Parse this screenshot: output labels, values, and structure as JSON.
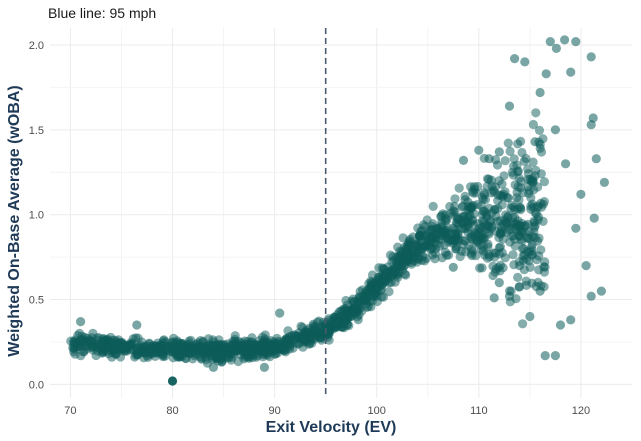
{
  "chart_data": {
    "type": "scatter",
    "subtitle": "Blue line: 95 mph",
    "xlabel": "Exit Velocity (EV)",
    "ylabel": "Weighted On-Base Average (wOBA)",
    "xlim": [
      68,
      125
    ],
    "ylim": [
      -0.08,
      2.1
    ],
    "x_ticks": [
      70,
      80,
      90,
      100,
      110,
      120
    ],
    "y_ticks": [
      0.0,
      0.5,
      1.0,
      1.5,
      2.0
    ],
    "y_tick_labels": [
      "0.0",
      "0.5",
      "1.0",
      "1.5",
      "2.0"
    ],
    "vline": {
      "x": 95,
      "label": "95 mph"
    },
    "point_color": "#0b5c5a",
    "vline_color": "#4a5a70",
    "trend": [
      [
        70,
        0.24
      ],
      [
        75,
        0.22
      ],
      [
        80,
        0.2
      ],
      [
        85,
        0.2
      ],
      [
        90,
        0.22
      ],
      [
        95,
        0.32
      ],
      [
        98,
        0.45
      ],
      [
        100,
        0.58
      ],
      [
        103,
        0.76
      ],
      [
        106,
        0.9
      ],
      [
        110,
        0.98
      ],
      [
        113,
        1.0
      ],
      [
        116,
        0.97
      ]
    ],
    "outliers": [
      [
        80.0,
        0.02
      ],
      [
        71.0,
        0.37
      ],
      [
        76.5,
        0.35
      ],
      [
        90.5,
        0.42
      ],
      [
        89.0,
        0.1
      ],
      [
        84.0,
        0.1
      ],
      [
        117.0,
        2.02
      ],
      [
        118.4,
        2.03
      ],
      [
        119.5,
        2.02
      ],
      [
        117.6,
        1.98
      ],
      [
        113.5,
        1.92
      ],
      [
        114.5,
        1.9
      ],
      [
        121.0,
        1.93
      ],
      [
        116.6,
        1.83
      ],
      [
        119.0,
        1.84
      ],
      [
        116.0,
        1.72
      ],
      [
        113.0,
        1.64
      ],
      [
        117.5,
        1.5
      ],
      [
        115.5,
        1.43
      ],
      [
        121.2,
        1.57
      ],
      [
        121.0,
        1.53
      ],
      [
        112.0,
        1.37
      ],
      [
        111.0,
        1.33
      ],
      [
        118.5,
        1.3
      ],
      [
        121.5,
        1.33
      ],
      [
        122.3,
        1.19
      ],
      [
        120.0,
        1.12
      ],
      [
        119.5,
        0.92
      ],
      [
        121.3,
        0.98
      ],
      [
        120.5,
        0.7
      ],
      [
        122.0,
        0.55
      ],
      [
        121.0,
        0.52
      ],
      [
        116.5,
        0.17
      ],
      [
        117.5,
        0.17
      ],
      [
        115.0,
        0.4
      ],
      [
        118.0,
        0.35
      ],
      [
        116.0,
        0.55
      ],
      [
        112.0,
        0.6
      ],
      [
        111.5,
        0.51
      ],
      [
        113.0,
        0.52
      ],
      [
        107.5,
        0.69
      ],
      [
        108.5,
        1.32
      ],
      [
        110.0,
        1.38
      ],
      [
        114.0,
        0.7
      ],
      [
        119.0,
        0.38
      ]
    ]
  }
}
